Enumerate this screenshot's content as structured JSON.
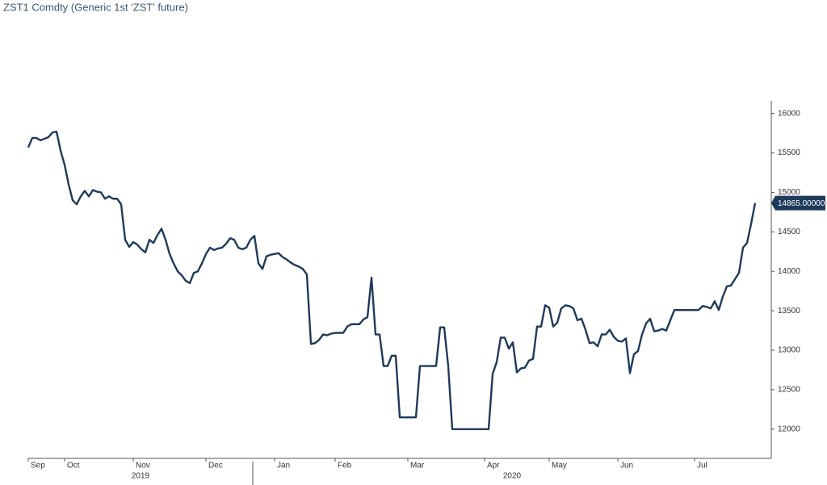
{
  "chart_data": {
    "type": "line",
    "title": "ZST1 Comdty (Generic 1st 'ZST' future)",
    "color": "#1e3a5a",
    "years": [
      "2019",
      "2020"
    ],
    "categories": [
      "Sep",
      null,
      null,
      null,
      null,
      null,
      null,
      null,
      null,
      "Oct",
      null,
      null,
      null,
      null,
      null,
      null,
      null,
      null,
      null,
      null,
      null,
      null,
      null,
      null,
      null,
      null,
      "Nov",
      null,
      null,
      null,
      null,
      null,
      null,
      null,
      null,
      null,
      null,
      null,
      null,
      null,
      null,
      null,
      null,
      null,
      "Dec",
      null,
      null,
      null,
      null,
      null,
      null,
      null,
      null,
      null,
      null,
      null,
      null,
      null,
      null,
      null,
      null,
      "Jan",
      null,
      null,
      null,
      null,
      null,
      null,
      null,
      null,
      null,
      null,
      null,
      null,
      null,
      null,
      "Feb",
      null,
      null,
      null,
      null,
      null,
      null,
      null,
      null,
      null,
      null,
      null,
      null,
      null,
      null,
      null,
      null,
      null,
      "Mar",
      null,
      null,
      null,
      null,
      null,
      null,
      null,
      null,
      null,
      null,
      null,
      null,
      null,
      null,
      null,
      null,
      null,
      null,
      "Apr",
      null,
      null,
      null,
      null,
      null,
      null,
      null,
      null,
      null,
      null,
      null,
      null,
      null,
      null,
      null,
      "May",
      null,
      null,
      null,
      null,
      null,
      null,
      null,
      null,
      null,
      null,
      null,
      null,
      null,
      null,
      null,
      null,
      "Jun",
      null,
      null,
      null,
      null,
      null,
      null,
      null,
      null,
      null,
      null,
      null,
      null,
      null,
      null,
      null,
      null,
      null,
      null,
      "Jul",
      null,
      null,
      null,
      null,
      null,
      null,
      null,
      null,
      null,
      null,
      null,
      null,
      null,
      null,
      null
    ],
    "values": [
      15570,
      15690,
      15690,
      15660,
      15680,
      15700,
      15760,
      15770,
      15530,
      15350,
      15100,
      14900,
      14850,
      14950,
      15020,
      14950,
      15030,
      15010,
      15000,
      14920,
      14950,
      14920,
      14920,
      14850,
      14400,
      14310,
      14370,
      14340,
      14280,
      14240,
      14400,
      14360,
      14460,
      14540,
      14400,
      14220,
      14100,
      14000,
      13950,
      13880,
      13850,
      13980,
      14000,
      14100,
      14220,
      14300,
      14270,
      14290,
      14300,
      14350,
      14420,
      14400,
      14300,
      14280,
      14300,
      14400,
      14450,
      14100,
      14030,
      14190,
      14210,
      14220,
      14230,
      14180,
      14150,
      14110,
      14080,
      14060,
      14030,
      13960,
      13080,
      13090,
      13130,
      13200,
      13190,
      13210,
      13220,
      13220,
      13220,
      13300,
      13330,
      13330,
      13330,
      13390,
      13420,
      13920,
      13200,
      13200,
      12800,
      12800,
      12930,
      12930,
      12150,
      12150,
      12150,
      12150,
      12150,
      12800,
      12800,
      12800,
      12800,
      12800,
      13290,
      13290,
      12800,
      12000,
      12000,
      12000,
      12000,
      12000,
      12000,
      12000,
      12000,
      12000,
      12000,
      12700,
      12850,
      13160,
      13160,
      13020,
      13100,
      12720,
      12770,
      12780,
      12870,
      12890,
      13300,
      13300,
      13570,
      13540,
      13300,
      13350,
      13530,
      13570,
      13560,
      13530,
      13380,
      13400,
      13260,
      13090,
      13100,
      13050,
      13200,
      13200,
      13260,
      13170,
      13120,
      13110,
      13150,
      12710,
      12950,
      12990,
      13200,
      13340,
      13400,
      13240,
      13250,
      13270,
      13250,
      13380,
      13510,
      13510,
      13510,
      13510,
      13510,
      13510,
      13510,
      13560,
      13550,
      13530,
      13620,
      13510,
      13680,
      13810,
      13820,
      13900,
      13980,
      14300,
      14360,
      14600,
      14865
    ],
    "value_labels": [
      null,
      null,
      null,
      null,
      null,
      null,
      null,
      null,
      null,
      null,
      null,
      null,
      null,
      null,
      null,
      null,
      null,
      null,
      null,
      null,
      null,
      null,
      null,
      null,
      null,
      null,
      null,
      null,
      null,
      null,
      null,
      null,
      null,
      null,
      null,
      null,
      null,
      null,
      null,
      null,
      null,
      null,
      null,
      null,
      null,
      null,
      null,
      null,
      null,
      null,
      null,
      null,
      null,
      null,
      null,
      null,
      null,
      null,
      null,
      null,
      null,
      null,
      null,
      null,
      null,
      null,
      null,
      null,
      null,
      null,
      null,
      null,
      null,
      null,
      null,
      null,
      null,
      null,
      null,
      null,
      null,
      null,
      null,
      null,
      null,
      null,
      null,
      null,
      null,
      null,
      null,
      null,
      null,
      null,
      null,
      null,
      null,
      null,
      null,
      null,
      null,
      null,
      null,
      null,
      null,
      null,
      null,
      null,
      null,
      null,
      null,
      null,
      null,
      null,
      null,
      null,
      null,
      null,
      null,
      null,
      null,
      null,
      null,
      null,
      null,
      null,
      null,
      null,
      null,
      null,
      null,
      null,
      null,
      null,
      null,
      null,
      null,
      null,
      null,
      null,
      null,
      null,
      null,
      null,
      null,
      null,
      null,
      null,
      null,
      null,
      null,
      null,
      null,
      null,
      null,
      null,
      null,
      null,
      null,
      null,
      null,
      null,
      null,
      null,
      null,
      null,
      null,
      null,
      null,
      null,
      null,
      null,
      null,
      null,
      null,
      null,
      null,
      null,
      null,
      null,
      "14865.00000"
    ],
    "ylim": [
      11630,
      16160
    ],
    "yticks": [
      12000,
      12500,
      13000,
      13500,
      14000,
      14500,
      15000,
      15500,
      16000
    ],
    "grid": false
  }
}
